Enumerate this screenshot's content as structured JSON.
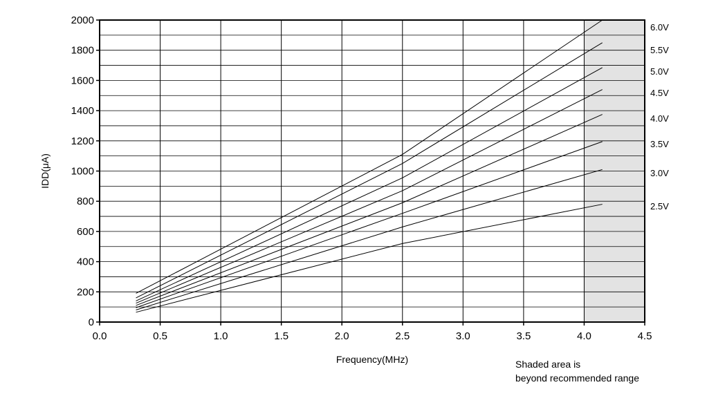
{
  "chart_data": {
    "type": "line",
    "title": "",
    "xlabel": "Frequency(MHz)",
    "ylabel": "IDD(μA)",
    "xlim": [
      0,
      4.5
    ],
    "ylim": [
      0,
      2000
    ],
    "x_ticks": [
      "0.0",
      "0.5",
      "1.0",
      "1.5",
      "2.0",
      "2.5",
      "3.0",
      "3.5",
      "4.0",
      "4.5"
    ],
    "y_ticks": [
      "0",
      "200",
      "400",
      "600",
      "800",
      "1000",
      "1200",
      "1400",
      "1600",
      "1800",
      "2000"
    ],
    "grid": true,
    "shaded_region": {
      "x": [
        4.0,
        4.5
      ],
      "note": [
        "Shaded area is",
        "beyond recommended range"
      ]
    },
    "series": [
      {
        "name": "6.0V",
        "x": [
          0.3,
          2.5,
          4.15
        ],
        "y": [
          190,
          1110,
          2000
        ]
      },
      {
        "name": "5.5V",
        "x": [
          0.3,
          2.5,
          4.15
        ],
        "y": [
          160,
          1050,
          1850
        ]
      },
      {
        "name": "5.0V",
        "x": [
          0.3,
          2.5,
          4.15
        ],
        "y": [
          140,
          955,
          1685
        ]
      },
      {
        "name": "4.5V",
        "x": [
          0.3,
          2.5,
          4.15
        ],
        "y": [
          125,
          870,
          1540
        ]
      },
      {
        "name": "4.0V",
        "x": [
          0.3,
          2.5,
          4.15
        ],
        "y": [
          110,
          790,
          1375
        ]
      },
      {
        "name": "3.5V",
        "x": [
          0.3,
          2.5,
          4.15
        ],
        "y": [
          95,
          720,
          1195
        ]
      },
      {
        "name": "3.0V",
        "x": [
          0.3,
          2.5,
          4.15
        ],
        "y": [
          80,
          630,
          1010
        ]
      },
      {
        "name": "2.5V",
        "x": [
          0.3,
          2.5,
          4.15
        ],
        "y": [
          65,
          520,
          780
        ]
      }
    ]
  }
}
